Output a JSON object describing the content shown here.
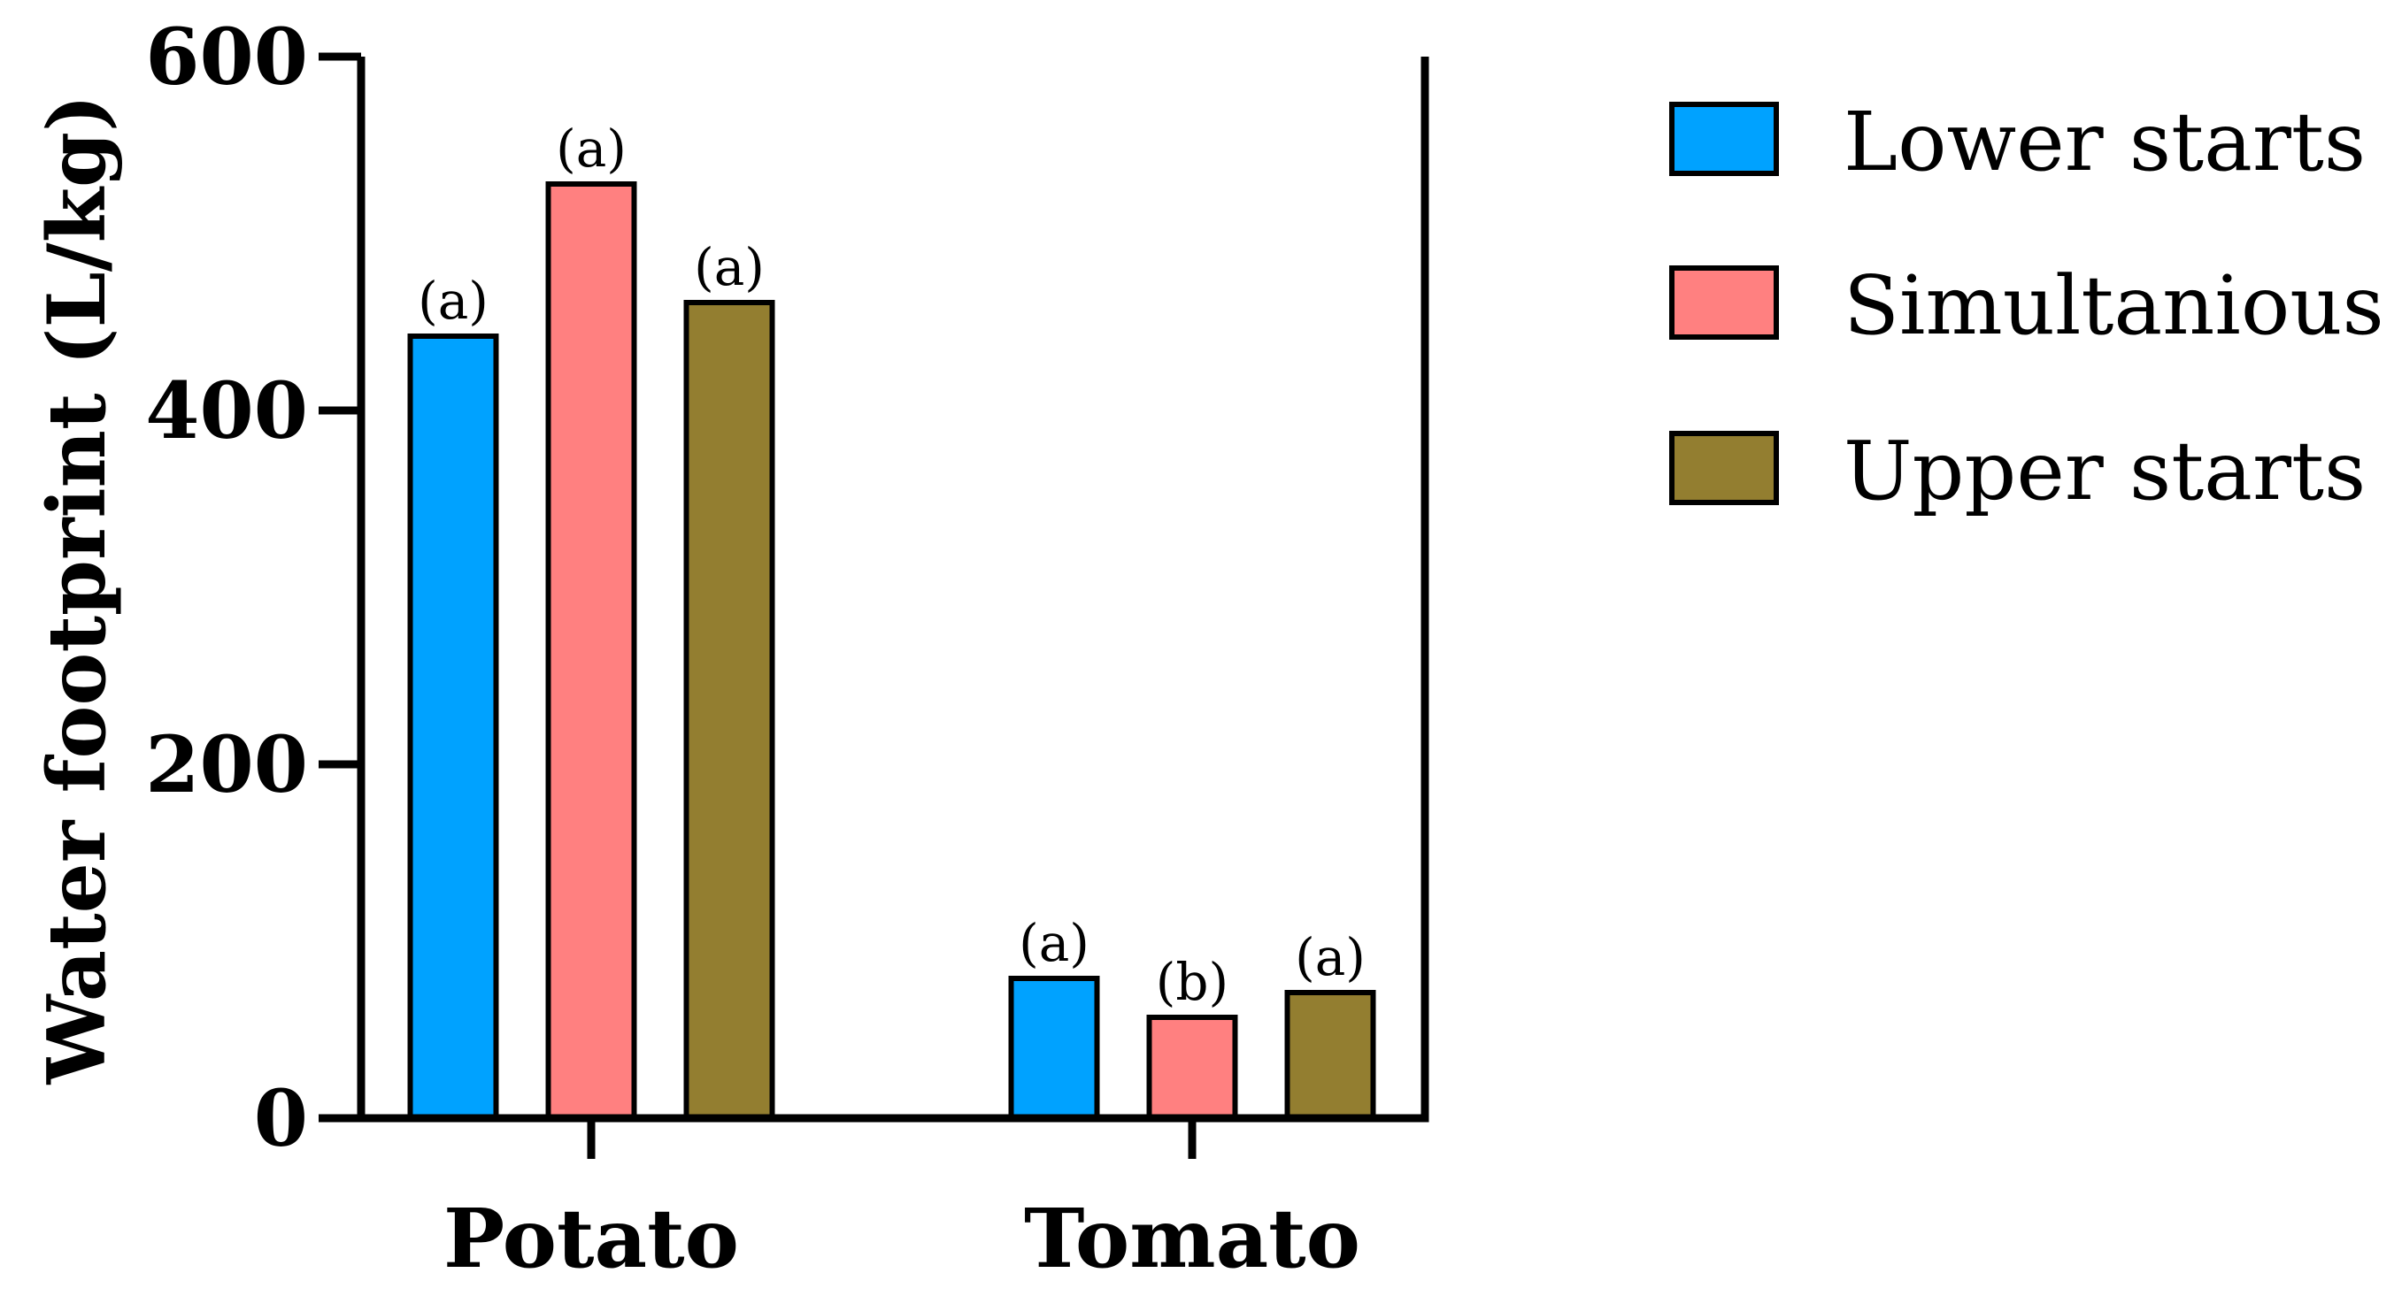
{
  "chart_data": {
    "type": "bar",
    "title": "",
    "xlabel": "",
    "ylabel": "Water footprint (L/kg)",
    "ylim": [
      0,
      600
    ],
    "yticks": [
      "0",
      "200",
      "400",
      "600"
    ],
    "grid": false,
    "legend_position": "right",
    "categories": [
      "Potato",
      "Tomato"
    ],
    "series": [
      {
        "name": "Lower starts",
        "color": "#00A2FF",
        "values": [
          442,
          79
        ],
        "labels": [
          "(a)",
          "(a)"
        ]
      },
      {
        "name": "Simultanious",
        "color": "#FF8080",
        "values": [
          528,
          57
        ],
        "labels": [
          "(a)",
          "(b)"
        ]
      },
      {
        "name": "Upper starts",
        "color": "#937E30",
        "values": [
          461,
          71
        ],
        "labels": [
          "(a)",
          "(a)"
        ]
      }
    ]
  }
}
